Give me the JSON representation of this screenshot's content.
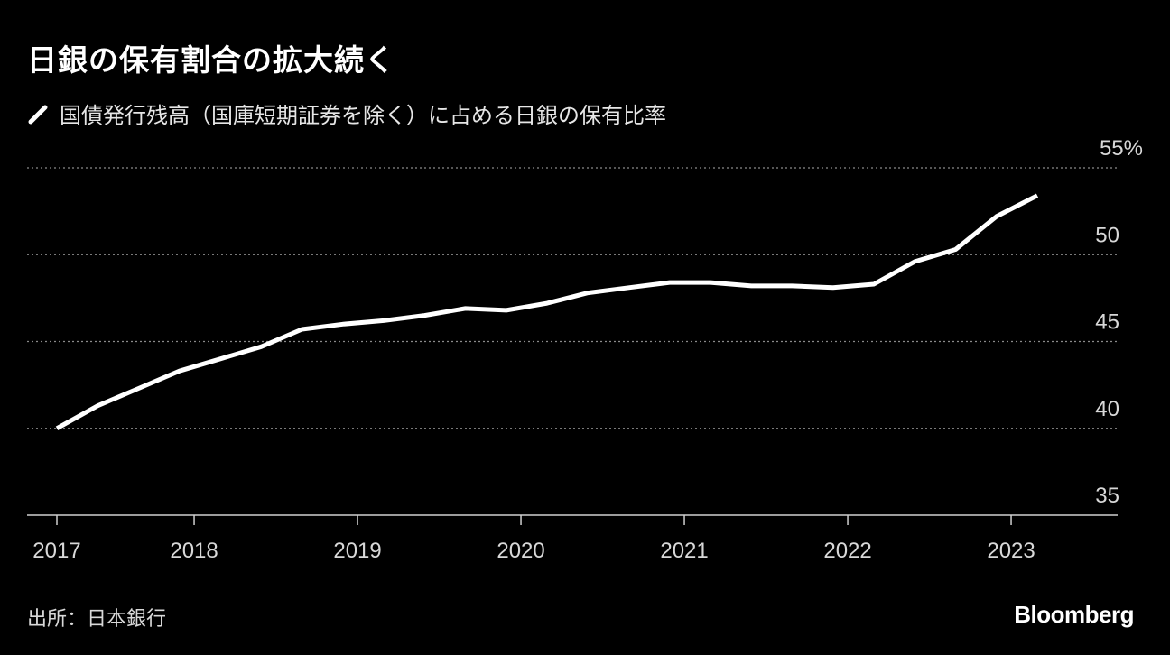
{
  "title": "日銀の保有割合の拡大続く",
  "legend_label": "国債発行残高（国庫短期証券を除く）に占める日銀の保有比率",
  "source": "出所：日本銀行",
  "brand": "Bloomberg",
  "colors": {
    "background": "#000000",
    "line": "#ffffff",
    "grid": "#8a8a8a"
  },
  "chart_data": {
    "type": "line",
    "title": "日銀の保有割合の拡大続く",
    "xlabel": "",
    "ylabel": "%",
    "ylim": [
      35,
      55
    ],
    "xlim": [
      2016.97,
      2023.84
    ],
    "grid": true,
    "legend_placement": "top-left",
    "y_ticks": [
      {
        "value": 55,
        "label": "55%"
      },
      {
        "value": 50,
        "label": "50"
      },
      {
        "value": 45,
        "label": "45"
      },
      {
        "value": 40,
        "label": "40"
      },
      {
        "value": 35,
        "label": "35"
      }
    ],
    "x_ticks": [
      {
        "value": 2017.16,
        "label": "2017"
      },
      {
        "value": 2018.0,
        "label": "2018"
      },
      {
        "value": 2019.0,
        "label": "2019"
      },
      {
        "value": 2020.0,
        "label": "2020"
      },
      {
        "value": 2021.0,
        "label": "2021"
      },
      {
        "value": 2022.0,
        "label": "2022"
      },
      {
        "value": 2023.0,
        "label": "2023"
      }
    ],
    "series": [
      {
        "name": "国債発行残高（国庫短期証券を除く）に占める日銀の保有比率",
        "x": [
          2017.16,
          2017.41,
          2017.66,
          2017.91,
          2018.16,
          2018.41,
          2018.66,
          2018.91,
          2019.16,
          2019.41,
          2019.66,
          2019.91,
          2020.16,
          2020.41,
          2020.66,
          2020.91,
          2021.16,
          2021.41,
          2021.66,
          2021.91,
          2022.16,
          2022.41,
          2022.66,
          2022.91,
          2023.16
        ],
        "values": [
          40.0,
          41.3,
          42.3,
          43.3,
          44.0,
          44.7,
          45.7,
          46.0,
          46.2,
          46.5,
          46.9,
          46.8,
          47.2,
          47.8,
          48.1,
          48.4,
          48.4,
          48.2,
          48.2,
          48.1,
          48.3,
          49.6,
          50.3,
          52.2,
          53.4
        ]
      }
    ]
  }
}
